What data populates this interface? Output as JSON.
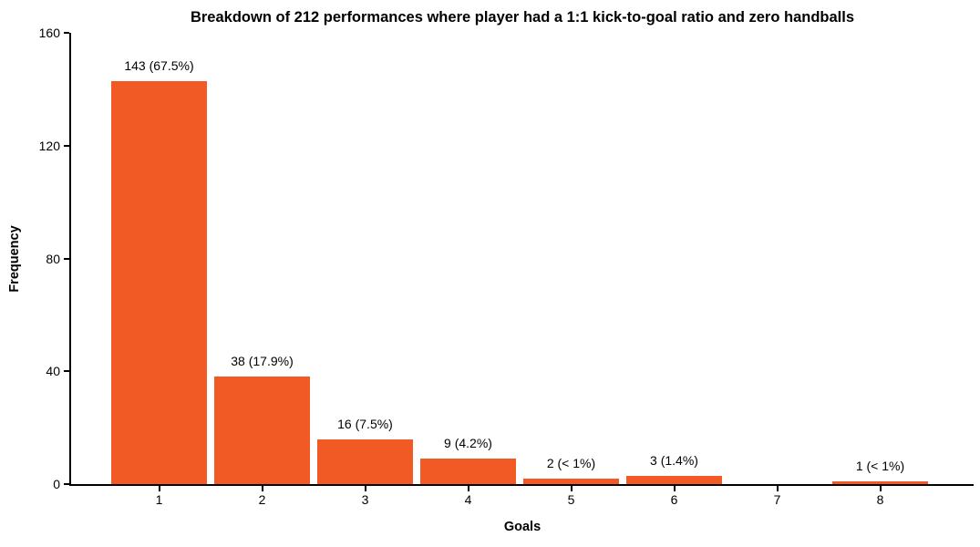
{
  "chart_data": {
    "type": "bar",
    "title": "Breakdown of 212 performances where player had a 1:1 kick-to-goal ratio and zero handballs",
    "xlabel": "Goals",
    "ylabel": "Frequency",
    "categories": [
      "1",
      "2",
      "3",
      "4",
      "5",
      "6",
      "7",
      "8"
    ],
    "values": [
      143,
      38,
      16,
      9,
      2,
      3,
      0,
      1
    ],
    "bar_labels": [
      "143 (67.5%)",
      "38 (17.9%)",
      "16 (7.5%)",
      "9 (4.2%)",
      "2 (< 1%)",
      "3 (1.4%)",
      "",
      "1 (< 1%)"
    ],
    "yticks": [
      0,
      40,
      80,
      120,
      160
    ],
    "ylim": [
      0,
      160
    ],
    "total_performances": 212,
    "bar_color": "#F15A24",
    "axis_color": "#000000",
    "background_color": "#FFFFFF",
    "grid": false,
    "legend_position": "none"
  }
}
